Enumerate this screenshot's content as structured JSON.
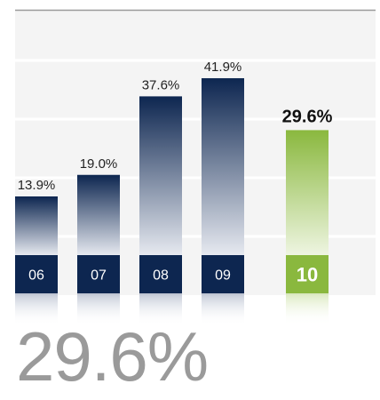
{
  "colors": {
    "background_panel": "#f4f4f4",
    "gridline": "#ffffff",
    "top_rule": "#9a9a9a",
    "bar_dark": "#0d2650",
    "bar_light": "#e6e9f0",
    "highlight": "#8ab83e",
    "highlight_light": "#eef5e1",
    "big_value": "#9a9a9a"
  },
  "chart_data": {
    "type": "bar",
    "categories": [
      "06",
      "07",
      "08",
      "09",
      "10"
    ],
    "values": [
      13.9,
      19.0,
      37.6,
      41.9,
      29.6
    ],
    "value_labels": [
      "13.9%",
      "19.0%",
      "37.6%",
      "41.9%",
      "29.6%"
    ],
    "highlight_index": 4,
    "ylim": [
      0,
      50
    ],
    "grid": true
  },
  "big_value": "29.6%"
}
